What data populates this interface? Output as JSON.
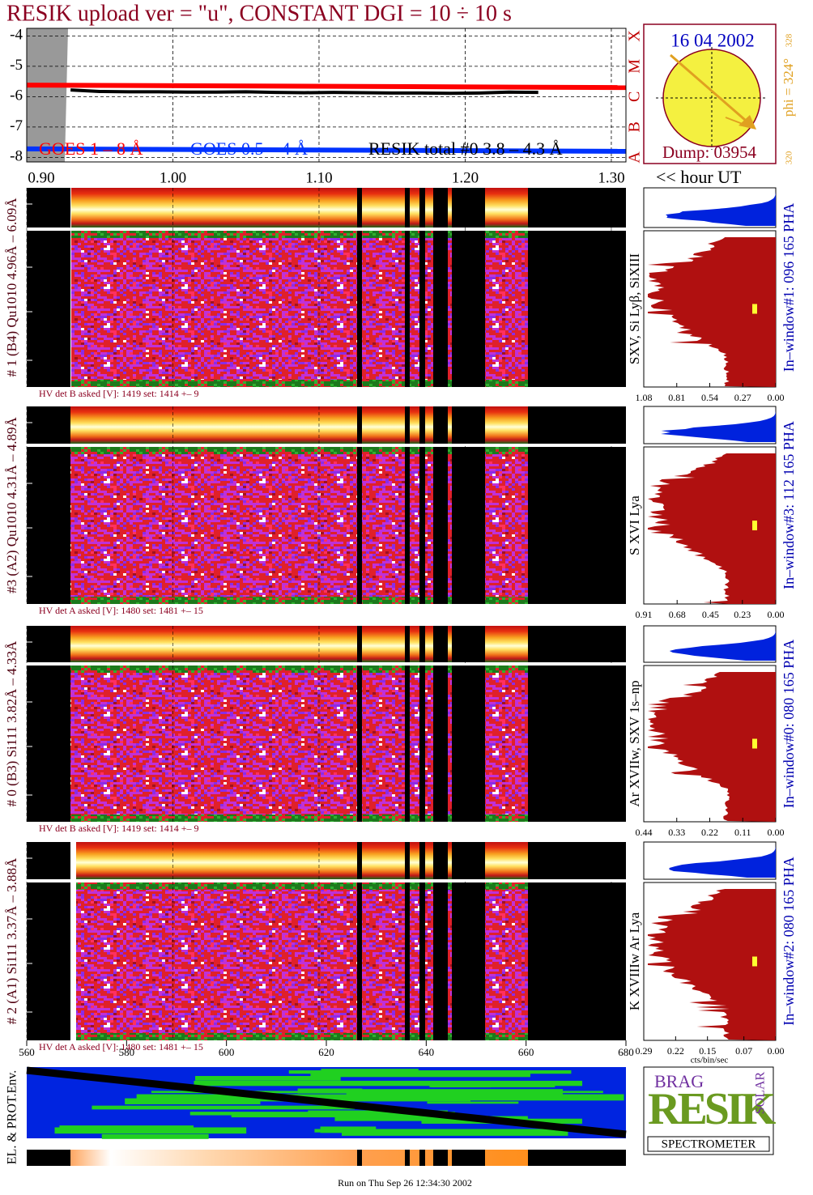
{
  "title": "RESIK upload ver = \"u\", CONSTANT  DGI =  10 ÷  10 s",
  "chart_data": {
    "type": "line",
    "x_label": "<< hour UT",
    "xlim": [
      0.9,
      1.31
    ],
    "ylim": [
      -8.15,
      -3.75
    ],
    "xticks": [
      {
        "value": 0.9,
        "label": "0.90"
      },
      {
        "value": 1.0,
        "label": "1.00"
      },
      {
        "value": 1.1,
        "label": "1.10"
      },
      {
        "value": 1.2,
        "label": "1.20"
      },
      {
        "value": 1.3,
        "label": "1.30"
      }
    ],
    "yticks": [
      -4,
      -5,
      -6,
      -7,
      -8
    ],
    "grid": true,
    "class_labels": [
      "X",
      "M",
      "C",
      "B",
      "A"
    ],
    "series": [
      {
        "name": "GOES 1 – 8 Å",
        "color": "#ff0000",
        "x": [
          0.9,
          1.31
        ],
        "values": [
          -5.62,
          -5.7
        ]
      },
      {
        "name": "GOES 0.5 – 4 Å",
        "color": "#0033ff",
        "x": [
          0.9,
          1.31
        ],
        "values": [
          -7.72,
          -7.8
        ]
      },
      {
        "name": "RESIK total #0  3.8 – 4.3 Å",
        "color": "#000000",
        "x": [
          0.93,
          0.95,
          0.97,
          0.99,
          1.01,
          1.03,
          1.05,
          1.07,
          1.09,
          1.11,
          1.13,
          1.15,
          1.17,
          1.19,
          1.21,
          1.23,
          1.25
        ],
        "values": [
          -5.78,
          -5.83,
          -5.84,
          -5.84,
          -5.85,
          -5.85,
          -5.84,
          -5.86,
          -5.87,
          -5.86,
          -5.87,
          -5.88,
          -5.88,
          -5.89,
          -5.88,
          -5.85,
          -5.86
        ]
      }
    ]
  },
  "sun": {
    "date": "16 04 2002",
    "dump": "Dump: 03954",
    "phi": "phi = 324°",
    "phi_top": "328",
    "phi_bottom": "320"
  },
  "panels": [
    {
      "label": "# 1 (B4) Qu1010 4.96Å – 6.09Å",
      "lines": "SXV, Si Lyβ, SiXIII",
      "window": "In–window#1:  096 165 PHA",
      "hv": "HV det B asked [V]:  1419 set:  1414  +–    9",
      "hist_lim": [
        1.08,
        0
      ],
      "hist_ticks": [
        1.08,
        0.81,
        0.54,
        0.27,
        {
          "value": 0,
          "label": "0.00"
        }
      ]
    },
    {
      "label": "#3 (A2) Qu1010  4.31Å – 4.89Å",
      "lines": "S XVI Lya",
      "window": "In–window#3:  112 165 PHA",
      "hv": "HV det A asked [V]:  1480 set:  1481  +–    15",
      "hist_lim": [
        0.91,
        0
      ],
      "hist_ticks": [
        0.91,
        0.68,
        0.45,
        0.23,
        {
          "value": 0,
          "label": "0.00"
        }
      ]
    },
    {
      "label": "# 0 (B3) Si111  3.82Å – 4.33Å",
      "lines": "Ar XVIIw,  SXV 1s–np",
      "window": "In–window#0:  080 165 PHA",
      "hv": "HV det B asked [V]:  1419 set:  1414  +–    9",
      "hist_lim": [
        0.44,
        0
      ],
      "hist_ticks": [
        0.44,
        0.33,
        0.22,
        0.11,
        {
          "value": 0,
          "label": "0.00"
        }
      ]
    },
    {
      "label": "# 2 (A1) Si111  3.37Å – 3.88Å",
      "lines": "K XVIIIw  Ar Lya",
      "window": "In–window#2:  080 165 PHA",
      "hv": "HV det A asked [V]:  1480 set:  1481  +–    15",
      "hist_lim": [
        0.29,
        0
      ],
      "hist_ticks": [
        0.29,
        0.22,
        0.15,
        0.07,
        {
          "value": 0,
          "label": "0.00"
        }
      ]
    }
  ],
  "hist_unit": "cts/bin/sec",
  "bottom_axis": {
    "xlim": [
      560,
      680
    ],
    "xticks": [
      560,
      580,
      600,
      620,
      640,
      660,
      680
    ]
  },
  "env_label": "EL. & PROT.Env.",
  "logo": {
    "top": "BRAG",
    "main": "RESIK",
    "side": "SOLAR",
    "bottom": "SPECTROMETER"
  },
  "footer": "Run on Thu Sep 26 12:34:30 2002"
}
